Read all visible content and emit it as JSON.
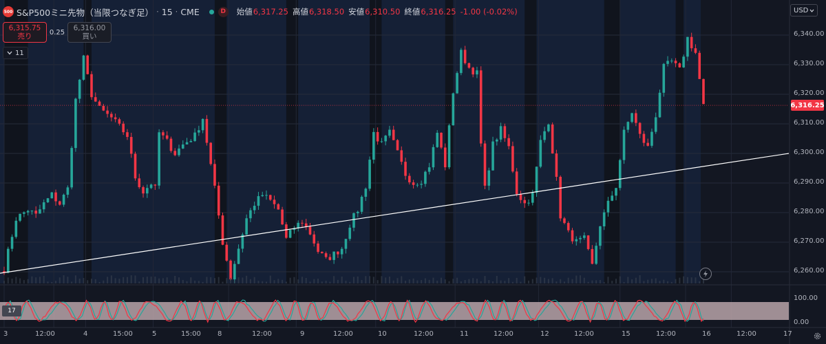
{
  "header": {
    "logo_text": "500",
    "symbol_title": "S&P500ミニ先物（当限つなぎ足）",
    "interval": "15",
    "exchange": "CME",
    "separator": "·",
    "delay_badge": "D",
    "ohlc": [
      {
        "label": "始値",
        "value": "6,317.25"
      },
      {
        "label": "高値",
        "value": "6,318.50"
      },
      {
        "label": "安値",
        "value": "6,310.50"
      },
      {
        "label": "終値",
        "value": "6,316.25"
      },
      {
        "label": "",
        "value": "-1.00 (-0.02%)"
      }
    ]
  },
  "trade_panel": {
    "sell_price": "6,315.75",
    "sell_label": "売り",
    "spread": "0.25",
    "buy_price": "6,316.00",
    "buy_label": "買い"
  },
  "indicators_toggle": {
    "icon": "chevron-down-icon",
    "count": "11"
  },
  "currency": {
    "label": "USD",
    "icon": "chevron-down-icon"
  },
  "price_axis": {
    "labels": [
      "6,340.00",
      "6,330.00",
      "6,320.00",
      "6,310.00",
      "6,300.00",
      "6,290.00",
      "6,280.00",
      "6,270.00",
      "6,260.00"
    ],
    "last_price": "6,316.25"
  },
  "oscillator_axis": {
    "labels": [
      "100.00",
      "0.00"
    ],
    "badge": "17"
  },
  "time_axis": {
    "labels": [
      "3",
      "12:00",
      "4",
      "15:00",
      "5",
      "15:00",
      "8",
      "12:00",
      "9",
      "12:00",
      "10",
      "12:00",
      "11",
      "12:00",
      "12",
      "12:00",
      "15",
      "12:00",
      "16",
      "12:00",
      "17"
    ]
  },
  "controls": {
    "flash_icon": "lightning-icon",
    "settings_icon": "gear-icon"
  },
  "colors": {
    "up": "#26a69a",
    "down": "#f23645",
    "background": "#131722",
    "session_band": "#152036",
    "trend_line": "#ffffff"
  },
  "chart_data": {
    "type": "candlestick",
    "title": "S&P500ミニ先物（当限つなぎ足）",
    "ylim": [
      6255,
      6345
    ],
    "y_ticks": [
      6340,
      6330,
      6320,
      6310,
      6300,
      6290,
      6280,
      6270,
      6260
    ],
    "trend_line": {
      "start": 6259.5,
      "end": 6300
    },
    "anchors": [
      {
        "t": 0,
        "p": 6261
      },
      {
        "t": 3,
        "p": 6278
      },
      {
        "t": 6,
        "p": 6281
      },
      {
        "t": 8,
        "p": 6279
      },
      {
        "t": 10,
        "p": 6283
      },
      {
        "t": 12,
        "p": 6286
      },
      {
        "t": 14,
        "p": 6283
      },
      {
        "t": 16,
        "p": 6288
      },
      {
        "t": 18,
        "p": 6318
      },
      {
        "t": 20,
        "p": 6332
      },
      {
        "t": 22,
        "p": 6320
      },
      {
        "t": 24,
        "p": 6315
      },
      {
        "t": 27,
        "p": 6312
      },
      {
        "t": 31,
        "p": 6306
      },
      {
        "t": 33,
        "p": 6292
      },
      {
        "t": 35,
        "p": 6287
      },
      {
        "t": 37,
        "p": 6290
      },
      {
        "t": 38.5,
        "p": 6287
      },
      {
        "t": 39,
        "p": 6307
      },
      {
        "t": 41,
        "p": 6304
      },
      {
        "t": 43,
        "p": 6300
      },
      {
        "t": 45,
        "p": 6303
      },
      {
        "t": 48,
        "p": 6306
      },
      {
        "t": 50,
        "p": 6312
      },
      {
        "t": 52,
        "p": 6296
      },
      {
        "t": 53,
        "p": 6288
      },
      {
        "t": 55,
        "p": 6270
      },
      {
        "t": 57,
        "p": 6258
      },
      {
        "t": 59,
        "p": 6268
      },
      {
        "t": 61,
        "p": 6278
      },
      {
        "t": 63,
        "p": 6283
      },
      {
        "t": 65,
        "p": 6286
      },
      {
        "t": 67,
        "p": 6284
      },
      {
        "t": 69,
        "p": 6281
      },
      {
        "t": 71,
        "p": 6271
      },
      {
        "t": 73,
        "p": 6275
      },
      {
        "t": 75,
        "p": 6277
      },
      {
        "t": 77,
        "p": 6273
      },
      {
        "t": 79,
        "p": 6267
      },
      {
        "t": 81,
        "p": 6264
      },
      {
        "t": 83,
        "p": 6266
      },
      {
        "t": 85,
        "p": 6268
      },
      {
        "t": 87,
        "p": 6276
      },
      {
        "t": 89,
        "p": 6281
      },
      {
        "t": 91,
        "p": 6289
      },
      {
        "t": 93,
        "p": 6307
      },
      {
        "t": 95,
        "p": 6303
      },
      {
        "t": 97,
        "p": 6307
      },
      {
        "t": 99,
        "p": 6300
      },
      {
        "t": 101,
        "p": 6293
      },
      {
        "t": 103,
        "p": 6290
      },
      {
        "t": 105,
        "p": 6291
      },
      {
        "t": 107,
        "p": 6296
      },
      {
        "t": 109,
        "p": 6307
      },
      {
        "t": 111,
        "p": 6296
      },
      {
        "t": 113,
        "p": 6321
      },
      {
        "t": 115,
        "p": 6334
      },
      {
        "t": 117,
        "p": 6329
      },
      {
        "t": 119,
        "p": 6327
      },
      {
        "t": 120,
        "p": 6303
      },
      {
        "t": 121,
        "p": 6288
      },
      {
        "t": 123,
        "p": 6303
      },
      {
        "t": 125,
        "p": 6308
      },
      {
        "t": 127,
        "p": 6302
      },
      {
        "t": 129,
        "p": 6287
      },
      {
        "t": 131,
        "p": 6283
      },
      {
        "t": 133,
        "p": 6286
      },
      {
        "t": 135,
        "p": 6304
      },
      {
        "t": 137,
        "p": 6311
      },
      {
        "t": 139,
        "p": 6291
      },
      {
        "t": 140,
        "p": 6279
      },
      {
        "t": 142,
        "p": 6273
      },
      {
        "t": 144,
        "p": 6270
      },
      {
        "t": 146,
        "p": 6271
      },
      {
        "t": 148,
        "p": 6262
      },
      {
        "t": 150,
        "p": 6276
      },
      {
        "t": 152,
        "p": 6283
      },
      {
        "t": 154,
        "p": 6289
      },
      {
        "t": 156,
        "p": 6307
      },
      {
        "t": 158,
        "p": 6314
      },
      {
        "t": 160,
        "p": 6306
      },
      {
        "t": 162,
        "p": 6302
      },
      {
        "t": 164,
        "p": 6313
      },
      {
        "t": 166,
        "p": 6329
      },
      {
        "t": 168,
        "p": 6331
      },
      {
        "t": 170,
        "p": 6328
      },
      {
        "t": 172,
        "p": 6339
      },
      {
        "t": 174,
        "p": 6334
      },
      {
        "t": 176,
        "p": 6316
      }
    ],
    "dark_sessions": [
      [
        0,
        6
      ],
      [
        20,
        22
      ],
      [
        53,
        56
      ],
      [
        71,
        74
      ],
      [
        92,
        95
      ],
      [
        111,
        113
      ],
      [
        131,
        134
      ],
      [
        151,
        155
      ],
      [
        169,
        171
      ]
    ],
    "oscillator_range": [
      0,
      100
    ]
  }
}
